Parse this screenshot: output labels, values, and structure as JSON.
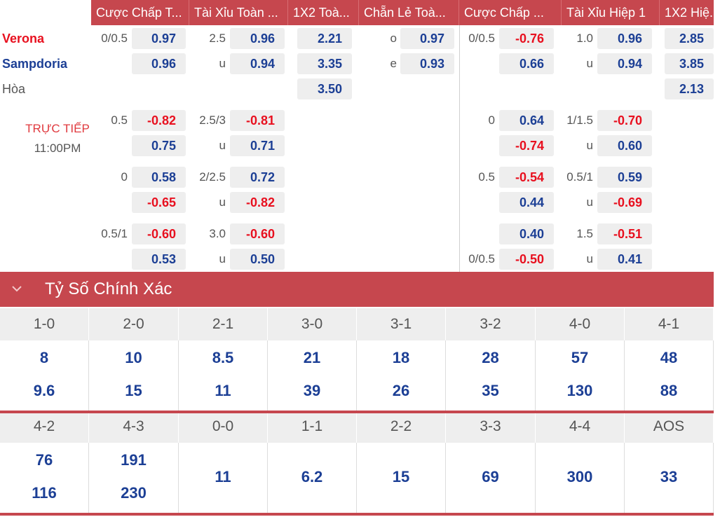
{
  "header": {
    "cols": [
      "Cược Chấp T...",
      "Tài Xỉu Toàn ...",
      "1X2 Toà...",
      "Chẵn Lẻ Toà...",
      "Cược Chấp ...",
      "Tài Xỉu Hiệp 1",
      "1X2 Hiệ..."
    ]
  },
  "teams": {
    "home": "Verona",
    "away": "Sampdoria",
    "draw": "Hòa"
  },
  "live": {
    "label": "TRỰC TIẾP",
    "time": "11:00PM"
  },
  "main": {
    "hdp": {
      "line": "0/0.5",
      "home": "0.97",
      "away": "0.96"
    },
    "ou": {
      "line": "2.5",
      "u": "u",
      "over": "0.96",
      "under": "0.94"
    },
    "x12": {
      "home": "2.21",
      "away": "3.35",
      "draw": "3.50"
    },
    "oe": {
      "o": "o",
      "e": "e",
      "odd": "0.97",
      "even": "0.93"
    },
    "h1hdp": {
      "line": "0/0.5",
      "home": "-0.76",
      "away": "0.66"
    },
    "h1ou": {
      "line": "1.0",
      "u": "u",
      "over": "0.96",
      "under": "0.94"
    },
    "h1x12": {
      "home": "2.85",
      "away": "3.85",
      "draw": "2.13"
    }
  },
  "alt": [
    {
      "hdpLine": "0.5",
      "hdpHome": "-0.82",
      "hdpAway": "0.75",
      "ouLine": "2.5/3",
      "ouU": "u",
      "ouOver": "-0.81",
      "ouUnder": "0.71",
      "h1Line": "0",
      "h1Home": "0.64",
      "h1Away": "-0.74",
      "h1ouLine": "1/1.5",
      "h1ouU": "u",
      "h1ouOver": "-0.70",
      "h1ouUnder": "0.60"
    },
    {
      "hdpLine": "0",
      "hdpHome": "0.58",
      "hdpAway": "-0.65",
      "ouLine": "2/2.5",
      "ouU": "u",
      "ouOver": "0.72",
      "ouUnder": "-0.82",
      "h1Line": "0.5",
      "h1Home": "-0.54",
      "h1Away": "0.44",
      "h1ouLine": "0.5/1",
      "h1ouU": "u",
      "h1ouOver": "0.59",
      "h1ouUnder": "-0.69"
    },
    {
      "hdpLine": "0.5/1",
      "hdpHome": "-0.60",
      "hdpAway": "0.53",
      "ouLine": "3.0",
      "ouU": "u",
      "ouOver": "-0.60",
      "ouUnder": "0.50",
      "h1LineBottom": "0/0.5",
      "h1Home": "0.40",
      "h1Away": "-0.50",
      "h1ouLine": "1.5",
      "h1ouU": "u",
      "h1ouOver": "-0.51",
      "h1ouUnder": "0.41"
    }
  ],
  "correctScore": {
    "title": "Tỷ Số Chính Xác",
    "row1": {
      "scores": [
        "1-0",
        "2-0",
        "2-1",
        "3-0",
        "3-1",
        "3-2",
        "4-0",
        "4-1"
      ],
      "top": [
        "8",
        "10",
        "8.5",
        "21",
        "18",
        "28",
        "57",
        "48"
      ],
      "bottom": [
        "9.6",
        "15",
        "11",
        "39",
        "26",
        "35",
        "130",
        "88"
      ]
    },
    "row2": {
      "scores": [
        "4-2",
        "4-3",
        "0-0",
        "1-1",
        "2-2",
        "3-3",
        "4-4",
        "AOS"
      ],
      "top": [
        "76",
        "191"
      ],
      "bottom": [
        "116",
        "230"
      ],
      "single": [
        "11",
        "6.2",
        "15",
        "69",
        "300",
        "33"
      ]
    }
  },
  "colors": {
    "accent": "#c6474e",
    "positive": "#1c3f95",
    "negative": "#e8101f"
  }
}
